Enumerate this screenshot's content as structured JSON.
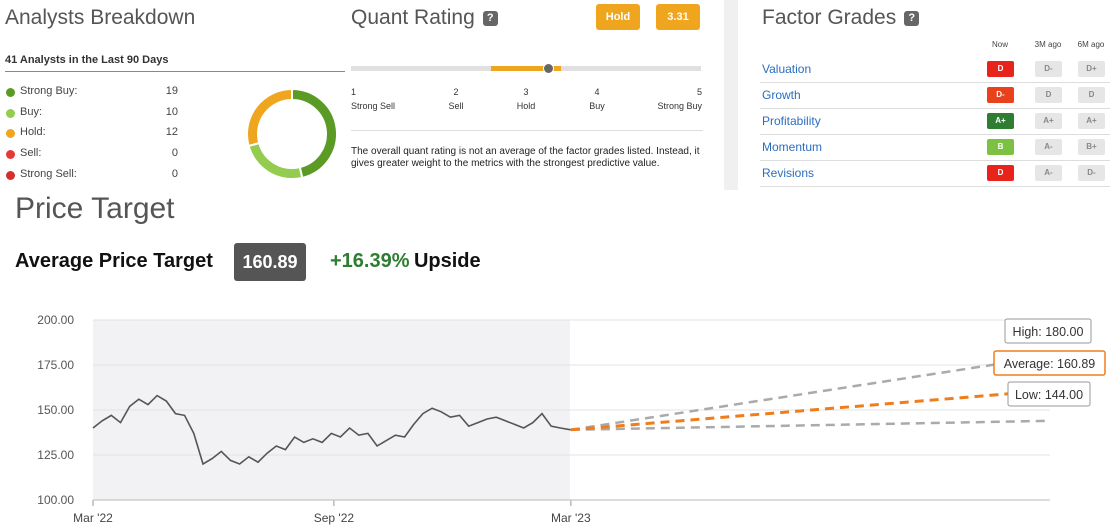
{
  "analysts": {
    "title": "Analysts Breakdown",
    "subtitle": "41 Analysts in the Last 90 Days",
    "ratings": [
      {
        "label": "Strong Buy:",
        "count": "19",
        "color": "#5b9a25"
      },
      {
        "label": "Buy:",
        "count": "10",
        "color": "#93cc4f"
      },
      {
        "label": "Hold:",
        "count": "12",
        "color": "#f0a51f"
      },
      {
        "label": "Sell:",
        "count": "0",
        "color": "#e53935"
      },
      {
        "label": "Strong Sell:",
        "count": "0",
        "color": "#d32f2f"
      }
    ]
  },
  "quant": {
    "title": "Quant Rating",
    "help_icon": "?",
    "rating_label": "Hold",
    "score": "3.31",
    "ticks": [
      {
        "num": "1",
        "label": "Strong Sell"
      },
      {
        "num": "2",
        "label": "Sell"
      },
      {
        "num": "3",
        "label": "Hold"
      },
      {
        "num": "4",
        "label": "Buy"
      },
      {
        "num": "5",
        "label": "Strong Buy"
      }
    ],
    "note": "The overall quant rating is not an average of the factor grades listed. Instead, it gives greater weight to the metrics with the strongest predictive value."
  },
  "factor_grades": {
    "title": "Factor Grades",
    "help_icon": "?",
    "columns": [
      "Now",
      "3M ago",
      "6M ago"
    ],
    "rows": [
      {
        "label": "Valuation",
        "now": "D",
        "now_color": "#e8231b",
        "m3": "D-",
        "m6": "D+"
      },
      {
        "label": "Growth",
        "now": "D-",
        "now_color": "#e8411b",
        "m3": "D",
        "m6": "D"
      },
      {
        "label": "Profitability",
        "now": "A+",
        "now_color": "#2e7d32",
        "m3": "A+",
        "m6": "A+"
      },
      {
        "label": "Momentum",
        "now": "B",
        "now_color": "#7cc142",
        "m3": "A-",
        "m6": "B+"
      },
      {
        "label": "Revisions",
        "now": "D",
        "now_color": "#e8231b",
        "m3": "A-",
        "m6": "D-"
      }
    ]
  },
  "price_target": {
    "title": "Price Target",
    "avg_label": "Average Price Target",
    "avg_value": "160.89",
    "upside_pct": "+16.39%",
    "upside_label": "Upside"
  },
  "chart_data": {
    "type": "line",
    "title": "",
    "xlabel": "",
    "ylabel": "",
    "x_ticks": [
      "Mar '22",
      "Sep '22",
      "Mar '23"
    ],
    "y_ticks": [
      "200.00",
      "175.00",
      "150.00",
      "125.00",
      "100.00"
    ],
    "ylim": [
      100,
      200
    ],
    "x_range": [
      "2022-03-01",
      "2024-03-01"
    ],
    "historical_shaded": true,
    "series": [
      {
        "name": "",
        "x": [
          "2022-03-01",
          "2022-03-08",
          "2022-03-15",
          "2022-03-22",
          "2022-03-29",
          "2022-04-05",
          "2022-04-12",
          "2022-04-19",
          "2022-04-26",
          "2022-05-03",
          "2022-05-10",
          "2022-05-17",
          "2022-05-24",
          "2022-05-31",
          "2022-06-07",
          "2022-06-14",
          "2022-06-21",
          "2022-06-28",
          "2022-07-05",
          "2022-07-12",
          "2022-07-19",
          "2022-07-26",
          "2022-08-02",
          "2022-08-09",
          "2022-08-16",
          "2022-08-23",
          "2022-08-30",
          "2022-09-06",
          "2022-09-13",
          "2022-09-20",
          "2022-09-27",
          "2022-10-04",
          "2022-10-11",
          "2022-10-18",
          "2022-10-25",
          "2022-11-01",
          "2022-11-08",
          "2022-11-15",
          "2022-11-22",
          "2022-11-29",
          "2022-12-06",
          "2022-12-13",
          "2022-12-20",
          "2022-12-27",
          "2023-01-03",
          "2023-01-10",
          "2023-01-17",
          "2023-01-24",
          "2023-01-31",
          "2023-02-07",
          "2023-02-14",
          "2023-02-21",
          "2023-03-01"
        ],
        "values": [
          140,
          144,
          147,
          143,
          152,
          156,
          153,
          158,
          155,
          148,
          147,
          137,
          120,
          123,
          127,
          122,
          120,
          124,
          121,
          126,
          130,
          128,
          135,
          132,
          134,
          132,
          137,
          135,
          140,
          136,
          137,
          130,
          133,
          136,
          135,
          142,
          148,
          151,
          149,
          146,
          147,
          141,
          143,
          145,
          146,
          144,
          142,
          140,
          143,
          148,
          141,
          140,
          139
        ]
      }
    ],
    "targets": {
      "start": {
        "x": "2023-03-01",
        "y": 139
      },
      "end_x": "2024-03-01",
      "high": {
        "label": "High: 180.00",
        "value": 180.0,
        "color": "#aaaaaa"
      },
      "average": {
        "label": "Average: 160.89",
        "value": 160.89,
        "color": "#f07d1b"
      },
      "low": {
        "label": "Low: 144.00",
        "value": 144.0,
        "color": "#aaaaaa"
      }
    }
  }
}
